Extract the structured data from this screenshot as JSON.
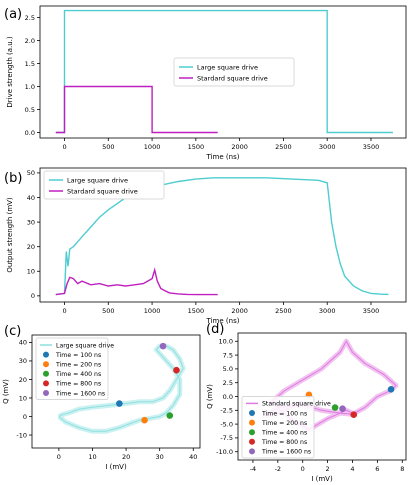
{
  "colors": {
    "large": "#4ecdd0",
    "standard": "#bf1fbf",
    "large_cloud": "#8ee0e0",
    "standard_cloud": "#e07ae0"
  },
  "chart_data": [
    {
      "panel": "(a)",
      "type": "line",
      "xlabel": "Time (ns)",
      "ylabel": "Drive strength (a.u.)",
      "xlim": [
        -280,
        3900
      ],
      "ylim": [
        -0.12,
        2.75
      ],
      "xticks": [
        0,
        500,
        1000,
        1500,
        2000,
        2500,
        3000,
        3500
      ],
      "yticks": [
        0.0,
        0.5,
        1.0,
        1.5,
        2.0,
        2.5
      ],
      "legend": "center",
      "series": [
        {
          "name": "Large square drive",
          "color": "#4ecdd0",
          "x": [
            -100,
            0,
            0,
            3000,
            3000,
            3750
          ],
          "y": [
            0,
            0,
            2.65,
            2.65,
            0,
            0
          ]
        },
        {
          "name": "Stardard square drive",
          "color": "#bf1fbf",
          "x": [
            -100,
            0,
            0,
            1000,
            1000,
            1750
          ],
          "y": [
            0,
            0,
            1.0,
            1.0,
            0,
            0
          ]
        }
      ]
    },
    {
      "panel": "(b)",
      "type": "line",
      "xlabel": "Time (ns)",
      "ylabel": "Output strength  (mV)",
      "xlim": [
        -280,
        3900
      ],
      "ylim": [
        -2.5,
        52
      ],
      "xticks": [
        0,
        500,
        1000,
        1500,
        2000,
        2500,
        3000,
        3500
      ],
      "yticks": [
        0,
        10,
        20,
        30,
        40,
        50
      ],
      "legend": "upper left",
      "series": [
        {
          "name": "Large square drive",
          "color": "#4ecdd0",
          "x": [
            -100,
            0,
            20,
            40,
            60,
            100,
            200,
            300,
            400,
            500,
            700,
            900,
            1100,
            1300,
            1500,
            1700,
            2000,
            2300,
            2600,
            2900,
            3000,
            3020,
            3050,
            3100,
            3150,
            3200,
            3300,
            3400,
            3500,
            3600,
            3700
          ],
          "y": [
            0.5,
            1,
            18,
            12,
            19,
            20,
            24,
            28,
            32,
            35,
            40,
            43,
            45,
            46.5,
            47.5,
            48,
            48,
            48,
            47.5,
            47,
            46,
            40,
            30,
            20,
            13,
            8,
            4,
            2,
            1,
            0.7,
            0.6
          ]
        },
        {
          "name": "Stardard square drive",
          "color": "#bf1fbf",
          "x": [
            -100,
            0,
            30,
            60,
            100,
            150,
            200,
            300,
            400,
            500,
            600,
            700,
            800,
            900,
            950,
            1000,
            1030,
            1060,
            1100,
            1150,
            1200,
            1300,
            1400,
            1500,
            1600,
            1750
          ],
          "y": [
            0.5,
            1,
            5,
            7.5,
            7,
            5,
            6,
            4.5,
            5,
            4,
            4.5,
            4,
            4.5,
            5,
            6,
            7,
            10.5,
            6,
            3,
            2,
            1.2,
            0.8,
            0.6,
            0.5,
            0.5,
            0.5
          ]
        }
      ]
    },
    {
      "panel": "(c)",
      "type": "scatter",
      "xlabel": "I (mV)",
      "ylabel": "Q (mV)",
      "xlim": [
        -8,
        42
      ],
      "ylim": [
        -17,
        44
      ],
      "xticks": [
        0,
        10,
        20,
        30,
        40
      ],
      "yticks": [
        -10,
        0,
        10,
        20,
        30,
        40
      ],
      "legend": "upper left",
      "trajectory": {
        "name": "Large square drive",
        "color": "#8ee0e0",
        "x": [
          0,
          2,
          6,
          10,
          14,
          18,
          21,
          24,
          27,
          30,
          32,
          34,
          36,
          36,
          34,
          32,
          30,
          29,
          30,
          32,
          34,
          36,
          37,
          35,
          33,
          31,
          28,
          24,
          20,
          15,
          10,
          6,
          3,
          1,
          0
        ],
        "y": [
          0,
          -3,
          -6,
          -8,
          -8,
          -6,
          -4,
          -2,
          -1,
          0,
          2,
          6,
          12,
          20,
          26,
          30,
          34,
          36,
          38,
          38,
          36,
          31,
          26,
          20,
          14,
          10,
          8,
          8,
          7,
          6,
          5,
          4,
          2,
          1,
          0
        ]
      },
      "points": [
        {
          "label": "Time = 100 ns",
          "color": "#1f77b4",
          "x": 18,
          "y": 7
        },
        {
          "label": "Time = 200 ns",
          "color": "#ff7f0e",
          "x": 25.5,
          "y": -2
        },
        {
          "label": "Time = 400 ns",
          "color": "#2ca02c",
          "x": 33,
          "y": 0.5
        },
        {
          "label": "Time = 800 ns",
          "color": "#d62728",
          "x": 35,
          "y": 25
        },
        {
          "label": "Time = 1600 ns",
          "color": "#9467bd",
          "x": 31,
          "y": 38
        }
      ]
    },
    {
      "panel": "(d)",
      "type": "scatter",
      "xlabel": "I (mV)",
      "ylabel": "Q (mV)",
      "xlim": [
        -5.2,
        8.3
      ],
      "ylim": [
        -11.5,
        11.5
      ],
      "xticks": [
        -4,
        -2,
        0,
        2,
        4,
        6,
        8
      ],
      "yticks": [
        -10.0,
        -7.5,
        -5.0,
        -2.5,
        0.0,
        2.5,
        5.0,
        7.5,
        10.0
      ],
      "legend": "lower left",
      "trajectory": {
        "name": "Standard square drive",
        "color": "#e07ae0",
        "x": [
          0,
          -1,
          -2,
          -3,
          -2,
          0,
          1.5,
          3,
          4,
          5,
          6,
          7,
          7.5,
          6.5,
          5,
          4,
          3.5,
          3,
          1.5,
          0,
          -1.5,
          -2.5,
          -1,
          0.5,
          2,
          3.5,
          4,
          3
        ],
        "y": [
          -1,
          -2,
          -3,
          -3.5,
          -2,
          -1.5,
          -2.5,
          -3,
          -3.2,
          -2,
          0,
          1,
          2,
          4,
          6,
          8,
          10,
          8,
          5,
          3,
          1,
          -1,
          -4,
          -6,
          -4,
          -2.5,
          -3,
          -2
        ]
      },
      "points": [
        {
          "label": "Time = 100 ns",
          "color": "#1f77b4",
          "x": 7.1,
          "y": 1.3
        },
        {
          "label": "Time = 200 ns",
          "color": "#ff7f0e",
          "x": 0.5,
          "y": 0.3
        },
        {
          "label": "Time = 400 ns",
          "color": "#2ca02c",
          "x": 2.6,
          "y": -2.0
        },
        {
          "label": "Time = 800 ns",
          "color": "#d62728",
          "x": 4.1,
          "y": -3.3
        },
        {
          "label": "Time = 1600 ns",
          "color": "#9467bd",
          "x": 3.2,
          "y": -2.2
        }
      ]
    }
  ]
}
